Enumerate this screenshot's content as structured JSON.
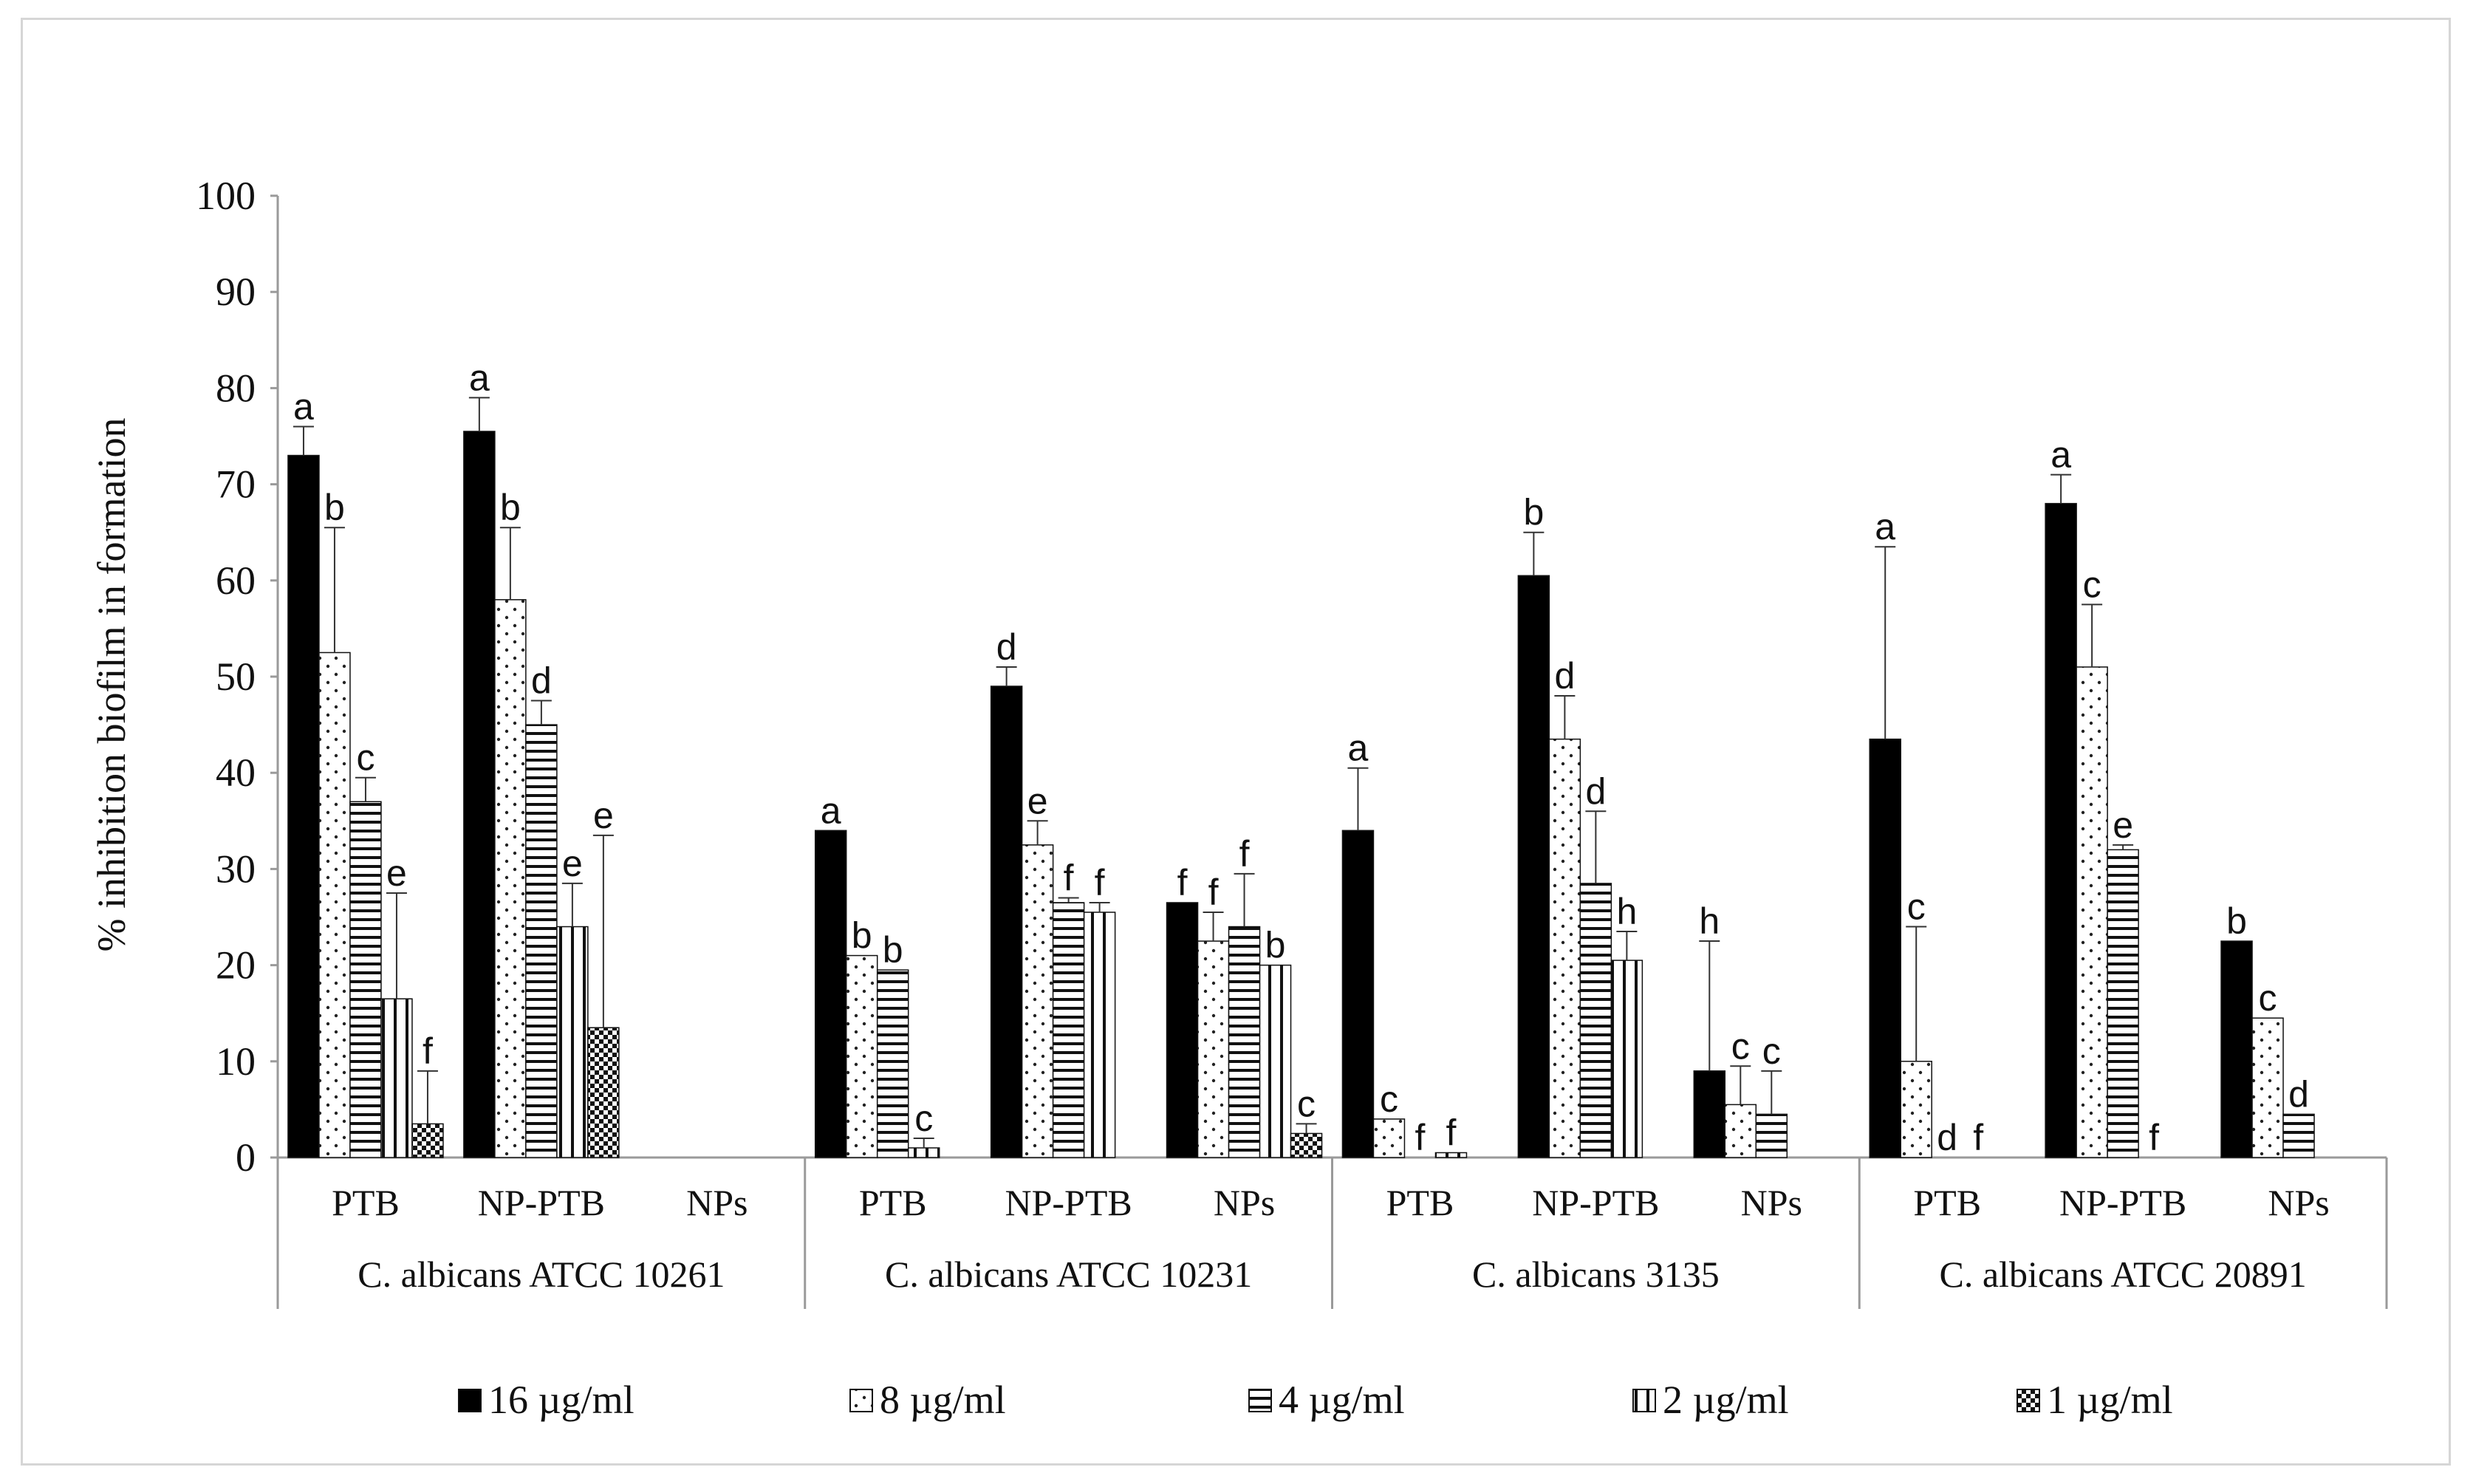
{
  "chart_data": {
    "type": "bar",
    "title": "",
    "xlabel": "",
    "ylabel": "% inhibition biofilm in formation",
    "ylim": [
      0,
      100
    ],
    "yticks": [
      0,
      10,
      20,
      30,
      40,
      50,
      60,
      70,
      80,
      90,
      100
    ],
    "legend_position": "bottom",
    "series": [
      {
        "name": "16 µg/ml",
        "pattern": "solid"
      },
      {
        "name": "8 µg/ml",
        "pattern": "dots"
      },
      {
        "name": "4 µg/ml",
        "pattern": "hlines"
      },
      {
        "name": "2 µg/ml",
        "pattern": "vlines"
      },
      {
        "name": "1 µg/ml",
        "pattern": "checker"
      }
    ],
    "groups": [
      {
        "name": "C. albicans ATCC 10261",
        "subgroups": [
          {
            "name": "PTB",
            "bars": [
              {
                "value": 73,
                "error": 3,
                "letter": "a"
              },
              {
                "value": 52.5,
                "error": 13,
                "letter": "b"
              },
              {
                "value": 37,
                "error": 2.5,
                "letter": "c"
              },
              {
                "value": 16.5,
                "error": 11,
                "letter": "e"
              },
              {
                "value": 3.5,
                "error": 5.5,
                "letter": "f"
              }
            ]
          },
          {
            "name": "NP-PTB",
            "bars": [
              {
                "value": 75.5,
                "error": 3.5,
                "letter": "a"
              },
              {
                "value": 58,
                "error": 7.5,
                "letter": "b"
              },
              {
                "value": 45,
                "error": 2.5,
                "letter": "d"
              },
              {
                "value": 24,
                "error": 4.5,
                "letter": "e"
              },
              {
                "value": 13.5,
                "error": 20,
                "letter": "e"
              }
            ]
          },
          {
            "name": "NPs",
            "bars": []
          }
        ]
      },
      {
        "name": "C. albicans ATCC 10231",
        "subgroups": [
          {
            "name": "PTB",
            "bars": [
              {
                "value": 34,
                "error": 0,
                "letter": "a"
              },
              {
                "value": 21,
                "error": 0,
                "letter": "b"
              },
              {
                "value": 19.5,
                "error": 0,
                "letter": "b"
              },
              {
                "value": 1,
                "error": 1,
                "letter": "c"
              }
            ]
          },
          {
            "name": "NP-PTB",
            "bars": [
              {
                "value": 49,
                "error": 2,
                "letter": "d"
              },
              {
                "value": 32.5,
                "error": 2.5,
                "letter": "e"
              },
              {
                "value": 26.5,
                "error": 0.5,
                "letter": "f"
              },
              {
                "value": 25.5,
                "error": 1,
                "letter": "f"
              }
            ]
          },
          {
            "name": "NPs",
            "bars": [
              {
                "value": 26.5,
                "error": 0,
                "letter": "f"
              },
              {
                "value": 22.5,
                "error": 3,
                "letter": "f"
              },
              {
                "value": 24,
                "error": 5.5,
                "letter": "f"
              },
              {
                "value": 20,
                "error": 0,
                "letter": "b"
              },
              {
                "value": 2.5,
                "error": 1,
                "letter": "c"
              }
            ]
          }
        ]
      },
      {
        "name": "C. albicans 3135",
        "subgroups": [
          {
            "name": "PTB",
            "bars": [
              {
                "value": 34,
                "error": 6.5,
                "letter": "a"
              },
              {
                "value": 4,
                "error": 0,
                "letter": "c"
              },
              {
                "value": 0,
                "error": 0,
                "letter": "f"
              },
              {
                "value": 0.5,
                "error": 0,
                "letter": "f"
              }
            ]
          },
          {
            "name": "NP-PTB",
            "bars": [
              {
                "value": 60.5,
                "error": 4.5,
                "letter": "b"
              },
              {
                "value": 43.5,
                "error": 4.5,
                "letter": "d"
              },
              {
                "value": 28.5,
                "error": 7.5,
                "letter": "d"
              },
              {
                "value": 20.5,
                "error": 3,
                "letter": "h"
              }
            ]
          },
          {
            "name": "NPs",
            "bars": [
              {
                "value": 9,
                "error": 13.5,
                "letter": "h"
              },
              {
                "value": 5.5,
                "error": 4,
                "letter": "c"
              },
              {
                "value": 4.5,
                "error": 4.5,
                "letter": "c"
              }
            ]
          }
        ]
      },
      {
        "name": "C. albicans ATCC 20891",
        "subgroups": [
          {
            "name": "PTB",
            "bars": [
              {
                "value": 43.5,
                "error": 20,
                "letter": "a"
              },
              {
                "value": 10,
                "error": 14,
                "letter": "c"
              },
              {
                "value": 0,
                "error": 0,
                "letter": "d"
              },
              {
                "value": 0,
                "error": 0,
                "letter": "f"
              }
            ]
          },
          {
            "name": "NP-PTB",
            "bars": [
              {
                "value": 68,
                "error": 3,
                "letter": "a"
              },
              {
                "value": 51,
                "error": 6.5,
                "letter": "c"
              },
              {
                "value": 32,
                "error": 0.5,
                "letter": "e"
              },
              {
                "value": 0,
                "error": 0,
                "letter": "f"
              }
            ]
          },
          {
            "name": "NPs",
            "bars": [
              {
                "value": 22.5,
                "error": 0,
                "letter": "b"
              },
              {
                "value": 14.5,
                "error": 0,
                "letter": "c"
              },
              {
                "value": 4.5,
                "error": 0,
                "letter": "d"
              }
            ]
          }
        ]
      }
    ]
  }
}
